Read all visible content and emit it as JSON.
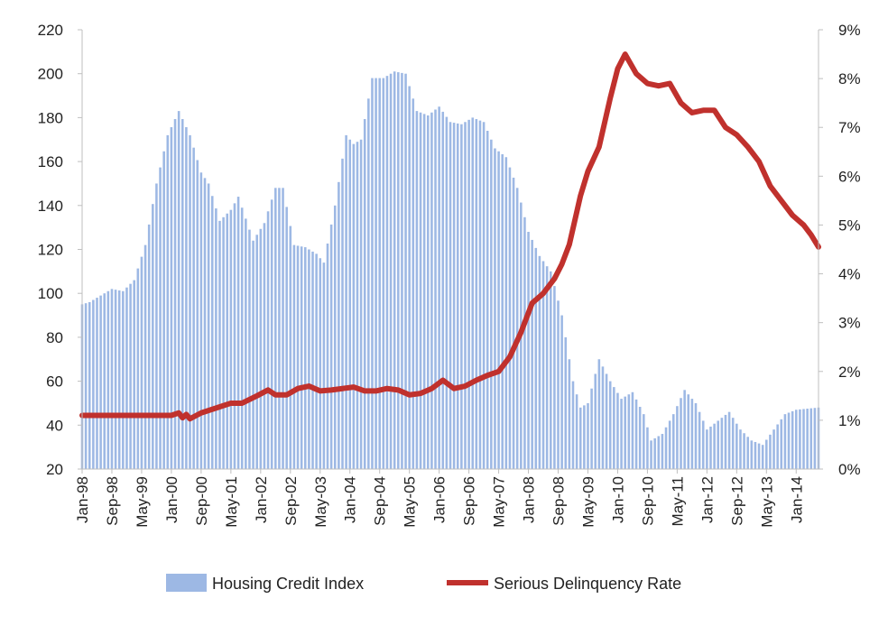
{
  "chart_data": {
    "type": "bar+line",
    "title": "",
    "x_axis": {
      "tick_labels": [
        "Jan-98",
        "Sep-98",
        "May-99",
        "Jan-00",
        "Sep-00",
        "May-01",
        "Jan-02",
        "Sep-02",
        "May-03",
        "Jan-04",
        "Sep-04",
        "May-05",
        "Jan-06",
        "Sep-06",
        "May-07",
        "Jan-08",
        "Sep-08",
        "May-09",
        "Jan-10",
        "Sep-10",
        "May-11",
        "Jan-12",
        "Sep-12",
        "May-13",
        "Jan-14"
      ],
      "start": "Jan-98",
      "end": "Jul-14",
      "tick_interval_months": 8
    },
    "y_left": {
      "min": 20,
      "max": 220,
      "step": 20,
      "tick_labels": [
        "20",
        "40",
        "60",
        "80",
        "100",
        "120",
        "140",
        "160",
        "180",
        "200",
        "220"
      ]
    },
    "y_right": {
      "min": 0,
      "max": 9,
      "step": 1,
      "tick_labels": [
        "0%",
        "1%",
        "2%",
        "3%",
        "4%",
        "5%",
        "6%",
        "7%",
        "8%",
        "9%"
      ]
    },
    "legend": {
      "position": "bottom"
    },
    "grid": false,
    "series": [
      {
        "name": "Housing Credit Index",
        "type": "bar",
        "axis": "left",
        "color": "#9db8e4",
        "anchors": [
          [
            "Jan-98",
            95
          ],
          [
            "Mar-98",
            96
          ],
          [
            "Jun-98",
            99
          ],
          [
            "Sep-98",
            102
          ],
          [
            "Dec-98",
            101
          ],
          [
            "Mar-99",
            106
          ],
          [
            "Jun-99",
            122
          ],
          [
            "Sep-99",
            150
          ],
          [
            "Dec-99",
            172
          ],
          [
            "Mar-00",
            183
          ],
          [
            "Jun-00",
            172
          ],
          [
            "Sep-00",
            155
          ],
          [
            "Nov-00",
            150
          ],
          [
            "Feb-01",
            133
          ],
          [
            "May-01",
            138
          ],
          [
            "Jul-01",
            144
          ],
          [
            "Nov-01",
            124
          ],
          [
            "Feb-02",
            132
          ],
          [
            "May-02",
            148
          ],
          [
            "Jul-02",
            148
          ],
          [
            "Oct-02",
            122
          ],
          [
            "Jan-03",
            121
          ],
          [
            "Apr-03",
            118
          ],
          [
            "Jun-03",
            114
          ],
          [
            "Sep-03",
            140
          ],
          [
            "Dec-03",
            172
          ],
          [
            "Feb-04",
            168
          ],
          [
            "Apr-04",
            170
          ],
          [
            "Jul-04",
            198
          ],
          [
            "Oct-04",
            198
          ],
          [
            "Jan-05",
            201
          ],
          [
            "Apr-05",
            200
          ],
          [
            "Jul-05",
            183
          ],
          [
            "Oct-05",
            181
          ],
          [
            "Jan-06",
            185
          ],
          [
            "Apr-06",
            178
          ],
          [
            "Jul-06",
            177
          ],
          [
            "Oct-06",
            180
          ],
          [
            "Jan-07",
            178
          ],
          [
            "Apr-07",
            166
          ],
          [
            "Jul-07",
            162
          ],
          [
            "Oct-07",
            148
          ],
          [
            "Jan-08",
            128
          ],
          [
            "Apr-08",
            117
          ],
          [
            "Jul-08",
            110
          ],
          [
            "Oct-08",
            90
          ],
          [
            "Jan-09",
            60
          ],
          [
            "Mar-09",
            48
          ],
          [
            "May-09",
            50
          ],
          [
            "Aug-09",
            70
          ],
          [
            "Nov-09",
            60
          ],
          [
            "Feb-10",
            52
          ],
          [
            "May-10",
            55
          ],
          [
            "Aug-10",
            45
          ],
          [
            "Oct-10",
            33
          ],
          [
            "Jan-11",
            36
          ],
          [
            "Apr-11",
            45
          ],
          [
            "Jul-11",
            56
          ],
          [
            "Oct-11",
            50
          ],
          [
            "Jan-12",
            38
          ],
          [
            "Apr-12",
            42
          ],
          [
            "Jul-12",
            46
          ],
          [
            "Oct-12",
            38
          ],
          [
            "Jan-13",
            33
          ],
          [
            "Apr-13",
            31
          ],
          [
            "Jul-13",
            38
          ],
          [
            "Oct-13",
            45
          ],
          [
            "Jan-14",
            47
          ],
          [
            "Jul-14",
            48
          ]
        ]
      },
      {
        "name": "Serious Delinquency Rate",
        "type": "line",
        "axis": "right",
        "color": "#c0312d",
        "points": [
          [
            "Jan-98",
            1.1
          ],
          [
            "Jun-98",
            1.1
          ],
          [
            "Jan-99",
            1.1
          ],
          [
            "Jun-99",
            1.1
          ],
          [
            "Jan-00",
            1.1
          ],
          [
            "Mar-00",
            1.15
          ],
          [
            "Apr-00",
            1.05
          ],
          [
            "May-00",
            1.12
          ],
          [
            "Jun-00",
            1.03
          ],
          [
            "Sep-00",
            1.15
          ],
          [
            "Jan-01",
            1.25
          ],
          [
            "May-01",
            1.35
          ],
          [
            "Aug-01",
            1.35
          ],
          [
            "Dec-01",
            1.5
          ],
          [
            "Mar-02",
            1.62
          ],
          [
            "May-02",
            1.52
          ],
          [
            "Aug-02",
            1.52
          ],
          [
            "Nov-02",
            1.65
          ],
          [
            "Feb-03",
            1.7
          ],
          [
            "May-03",
            1.6
          ],
          [
            "Aug-03",
            1.62
          ],
          [
            "Nov-03",
            1.65
          ],
          [
            "Feb-04",
            1.68
          ],
          [
            "May-04",
            1.6
          ],
          [
            "Aug-04",
            1.6
          ],
          [
            "Nov-04",
            1.65
          ],
          [
            "Feb-05",
            1.62
          ],
          [
            "May-05",
            1.52
          ],
          [
            "Aug-05",
            1.55
          ],
          [
            "Nov-05",
            1.65
          ],
          [
            "Feb-06",
            1.82
          ],
          [
            "May-06",
            1.65
          ],
          [
            "Aug-06",
            1.7
          ],
          [
            "Nov-06",
            1.82
          ],
          [
            "Feb-07",
            1.92
          ],
          [
            "May-07",
            2.0
          ],
          [
            "Aug-07",
            2.3
          ],
          [
            "Nov-07",
            2.8
          ],
          [
            "Feb-08",
            3.4
          ],
          [
            "May-08",
            3.6
          ],
          [
            "Aug-08",
            3.9
          ],
          [
            "Oct-08",
            4.2
          ],
          [
            "Dec-08",
            4.6
          ],
          [
            "Mar-09",
            5.6
          ],
          [
            "May-09",
            6.1
          ],
          [
            "Aug-09",
            6.6
          ],
          [
            "Nov-09",
            7.6
          ],
          [
            "Jan-10",
            8.2
          ],
          [
            "Mar-10",
            8.5
          ],
          [
            "Jun-10",
            8.1
          ],
          [
            "Sep-10",
            7.9
          ],
          [
            "Dec-10",
            7.85
          ],
          [
            "Mar-11",
            7.9
          ],
          [
            "Jun-11",
            7.5
          ],
          [
            "Sep-11",
            7.3
          ],
          [
            "Dec-11",
            7.35
          ],
          [
            "Mar-12",
            7.35
          ],
          [
            "Jun-12",
            7.0
          ],
          [
            "Sep-12",
            6.85
          ],
          [
            "Dec-12",
            6.6
          ],
          [
            "Mar-13",
            6.3
          ],
          [
            "Jun-13",
            5.8
          ],
          [
            "Sep-13",
            5.5
          ],
          [
            "Dec-13",
            5.2
          ],
          [
            "Mar-14",
            5.0
          ],
          [
            "May-14",
            4.8
          ],
          [
            "Jul-14",
            4.55
          ]
        ]
      }
    ]
  }
}
